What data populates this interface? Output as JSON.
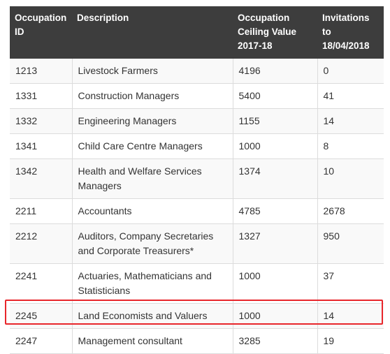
{
  "table": {
    "headers": [
      "Occupation ID",
      "Description",
      "Occupation Ceiling Value 2017-18",
      "Invitations to 18/04/2018"
    ],
    "rows": [
      {
        "id": "1213",
        "description": "Livestock Farmers",
        "ceiling": "4196",
        "invitations": "0"
      },
      {
        "id": "1331",
        "description": "Construction Managers",
        "ceiling": "5400",
        "invitations": "41"
      },
      {
        "id": "1332",
        "description": "Engineering Managers",
        "ceiling": "1155",
        "invitations": "14"
      },
      {
        "id": "1341",
        "description": "Child Care Centre Managers",
        "ceiling": "1000",
        "invitations": "8"
      },
      {
        "id": "1342",
        "description": "Health and Welfare Services Managers",
        "ceiling": "1374",
        "invitations": "10"
      },
      {
        "id": "2211",
        "description": "Accountants",
        "ceiling": "4785",
        "invitations": "2678"
      },
      {
        "id": "2212",
        "description": "Auditors, Company Secretaries and Corporate Treasurers*",
        "ceiling": "1327",
        "invitations": "950"
      },
      {
        "id": "2241",
        "description": "Actuaries, Mathematicians and Statisticians",
        "ceiling": "1000",
        "invitations": "37"
      },
      {
        "id": "2245",
        "description": "Land Economists and Valuers",
        "ceiling": "1000",
        "invitations": "14"
      },
      {
        "id": "2247",
        "description": "Management consultant",
        "ceiling": "3285",
        "invitations": "19"
      }
    ],
    "highlighted_row_index": 8,
    "highlight_color": "#e8262b",
    "header_background": "#3d3d3d"
  }
}
